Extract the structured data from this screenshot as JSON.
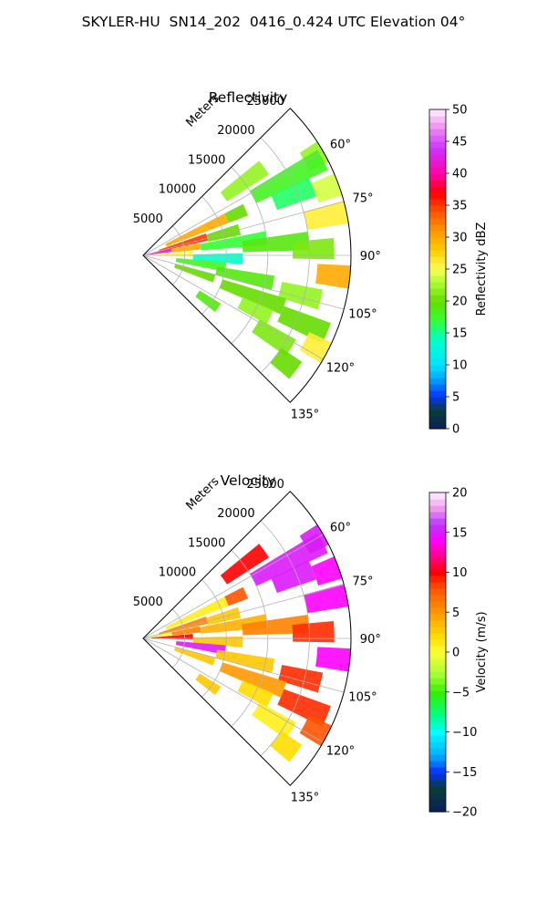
{
  "figure": {
    "suptitle": "SKYLER-HU  SN14_202  0416_0.424 UTC Elevation 04°"
  },
  "chart_data": [
    {
      "type": "polar-sector",
      "title": "Reflectivity",
      "radial_label": "Meters",
      "radial_ticks": [
        5000,
        10000,
        15000,
        20000,
        25000
      ],
      "radial_tick_labels": [
        "5000",
        "10000",
        "15000",
        "20000",
        "25000"
      ],
      "rlim": [
        0,
        25000
      ],
      "angle_ticks": [
        60,
        75,
        90,
        105,
        120,
        135
      ],
      "angle_tick_labels": [
        "60°",
        "75°",
        "90°",
        "105°",
        "120°",
        "135°"
      ],
      "theta_range_deg": [
        45,
        135
      ],
      "grid": true,
      "colorbar": {
        "label": "Reflectivity dBZ",
        "range": [
          0,
          50
        ],
        "ticks": [
          0,
          5,
          10,
          15,
          20,
          25,
          30,
          35,
          40,
          45,
          50
        ],
        "tick_labels": [
          "0",
          "5",
          "10",
          "15",
          "20",
          "25",
          "30",
          "35",
          "40",
          "45",
          "50"
        ]
      },
      "echoes": [
        {
          "az": 54,
          "r": [
            12000,
            18000
          ],
          "value": 22
        },
        {
          "az": 60,
          "r": [
            22500,
            25000
          ],
          "value": 22
        },
        {
          "az": 62,
          "r": [
            15000,
            24500
          ],
          "value": 18
        },
        {
          "az": 66,
          "r": [
            3000,
            11000
          ],
          "value": 30
        },
        {
          "az": 66,
          "r": [
            11000,
            13500
          ],
          "value": 20
        },
        {
          "az": 68,
          "r": [
            17000,
            22000
          ],
          "value": 16
        },
        {
          "az": 70,
          "r": [
            22000,
            25000
          ],
          "value": 24
        },
        {
          "az": 74,
          "r": [
            2000,
            8000
          ],
          "value": 35
        },
        {
          "az": 75,
          "r": [
            8000,
            12000
          ],
          "value": 20
        },
        {
          "az": 78,
          "r": [
            20000,
            25000
          ],
          "value": 26
        },
        {
          "az": 80,
          "r": [
            500,
            3500
          ],
          "value": 42
        },
        {
          "az": 81,
          "r": [
            3500,
            7000
          ],
          "value": 30
        },
        {
          "az": 82,
          "r": [
            7000,
            15000
          ],
          "value": 17
        },
        {
          "az": 85,
          "r": [
            12000,
            20000
          ],
          "value": 19
        },
        {
          "az": 88,
          "r": [
            1000,
            6000
          ],
          "value": 25
        },
        {
          "az": 88,
          "r": [
            18000,
            23000
          ],
          "value": 21
        },
        {
          "az": 92,
          "r": [
            6000,
            12000
          ],
          "value": 14
        },
        {
          "az": 96,
          "r": [
            21000,
            25000
          ],
          "value": 30
        },
        {
          "az": 98,
          "r": [
            4000,
            10000
          ],
          "value": 18
        },
        {
          "az": 102,
          "r": [
            9000,
            16000
          ],
          "value": 19
        },
        {
          "az": 104,
          "r": [
            17000,
            22000
          ],
          "value": 22
        },
        {
          "az": 108,
          "r": [
            4000,
            9000
          ],
          "value": 20
        },
        {
          "az": 110,
          "r": [
            10000,
            18000
          ],
          "value": 20
        },
        {
          "az": 113,
          "r": [
            18000,
            24000
          ],
          "value": 20
        },
        {
          "az": 116,
          "r": [
            13000,
            17000
          ],
          "value": 22
        },
        {
          "az": 118,
          "r": [
            22000,
            25000
          ],
          "value": 26
        },
        {
          "az": 122,
          "r": [
            16000,
            21000
          ],
          "value": 21
        },
        {
          "az": 125,
          "r": [
            8000,
            11000
          ],
          "value": 19
        },
        {
          "az": 127,
          "r": [
            20000,
            23000
          ],
          "value": 20
        }
      ]
    },
    {
      "type": "polar-sector",
      "title": "Velocity",
      "radial_label": "Meters",
      "radial_ticks": [
        5000,
        10000,
        15000,
        20000,
        25000
      ],
      "radial_tick_labels": [
        "5000",
        "10000",
        "15000",
        "20000",
        "25000"
      ],
      "rlim": [
        0,
        25000
      ],
      "angle_ticks": [
        60,
        75,
        90,
        105,
        120,
        135
      ],
      "angle_tick_labels": [
        "60°",
        "75°",
        "90°",
        "105°",
        "120°",
        "135°"
      ],
      "theta_range_deg": [
        45,
        135
      ],
      "grid": true,
      "colorbar": {
        "label": "Velocity (m/s)",
        "range": [
          -20,
          20
        ],
        "ticks": [
          -20,
          -15,
          -10,
          -5,
          0,
          5,
          10,
          15,
          20
        ],
        "tick_labels": [
          "−20",
          "−15",
          "−10",
          "−5",
          "0",
          "5",
          "10",
          "15",
          "20"
        ]
      },
      "echoes": [
        {
          "az": 54,
          "r": [
            12000,
            18000
          ],
          "value": 10
        },
        {
          "az": 60,
          "r": [
            22500,
            25000
          ],
          "value": 15
        },
        {
          "az": 62,
          "r": [
            15000,
            24500
          ],
          "value": 15
        },
        {
          "az": 66,
          "r": [
            3000,
            11000
          ],
          "value": 1
        },
        {
          "az": 66,
          "r": [
            11000,
            13500
          ],
          "value": 8
        },
        {
          "az": 68,
          "r": [
            17000,
            22000
          ],
          "value": 15
        },
        {
          "az": 70,
          "r": [
            22000,
            25000
          ],
          "value": 14
        },
        {
          "az": 74,
          "r": [
            2000,
            8000
          ],
          "value": 6
        },
        {
          "az": 75,
          "r": [
            8000,
            12000
          ],
          "value": 3
        },
        {
          "az": 78,
          "r": [
            20000,
            25000
          ],
          "value": 14
        },
        {
          "az": 80,
          "r": [
            500,
            3500
          ],
          "value": -1
        },
        {
          "az": 81,
          "r": [
            3500,
            7000
          ],
          "value": 6
        },
        {
          "az": 82,
          "r": [
            7000,
            15000
          ],
          "value": 4
        },
        {
          "az": 85,
          "r": [
            12000,
            20000
          ],
          "value": 6
        },
        {
          "az": 88,
          "r": [
            1000,
            6000
          ],
          "value": 10
        },
        {
          "az": 88,
          "r": [
            18000,
            23000
          ],
          "value": 9
        },
        {
          "az": 92,
          "r": [
            6000,
            12000
          ],
          "value": 3
        },
        {
          "az": 96,
          "r": [
            21000,
            25000
          ],
          "value": 14
        },
        {
          "az": 98,
          "r": [
            4000,
            10000
          ],
          "value": 15
        },
        {
          "az": 102,
          "r": [
            9000,
            16000
          ],
          "value": 3
        },
        {
          "az": 104,
          "r": [
            17000,
            22000
          ],
          "value": 9
        },
        {
          "az": 108,
          "r": [
            4000,
            9000
          ],
          "value": 3
        },
        {
          "az": 110,
          "r": [
            10000,
            18000
          ],
          "value": 5
        },
        {
          "az": 113,
          "r": [
            18000,
            24000
          ],
          "value": 9
        },
        {
          "az": 116,
          "r": [
            13000,
            17000
          ],
          "value": 2
        },
        {
          "az": 118,
          "r": [
            22000,
            25000
          ],
          "value": 8
        },
        {
          "az": 122,
          "r": [
            16000,
            21000
          ],
          "value": 1
        },
        {
          "az": 125,
          "r": [
            8000,
            11000
          ],
          "value": 3
        },
        {
          "az": 127,
          "r": [
            20000,
            23000
          ],
          "value": 2
        }
      ]
    }
  ]
}
